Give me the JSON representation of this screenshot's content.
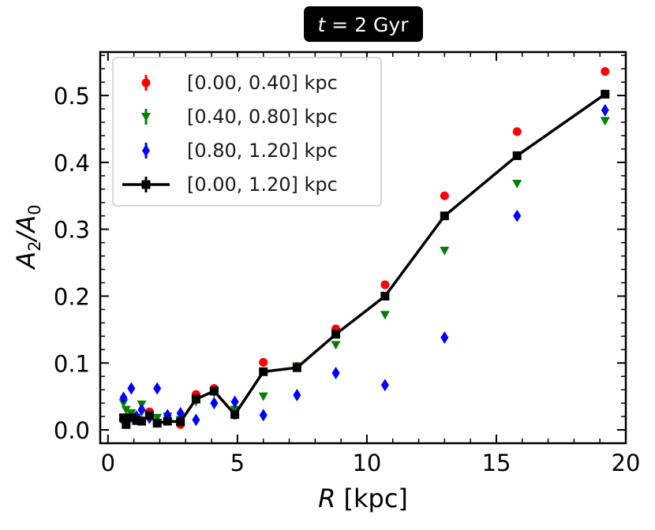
{
  "chart_data": {
    "type": "scatter",
    "title_prefix": "t",
    "title_suffix": " = 2 Gyr",
    "xlabel_var": "R",
    "xlabel_unit": " [kpc]",
    "ylabel_main": "A",
    "ylabel_sub1": "2",
    "ylabel_slash": "/A",
    "ylabel_sub2": "0",
    "xlim": [
      -0.3,
      20
    ],
    "ylim": [
      -0.02,
      0.565
    ],
    "xticks": [
      0,
      5,
      10,
      15,
      20
    ],
    "xtick_labels": [
      "0",
      "5",
      "10",
      "15",
      "20"
    ],
    "yticks": [
      0.0,
      0.1,
      0.2,
      0.3,
      0.4,
      0.5
    ],
    "ytick_labels": [
      "0.0",
      "0.1",
      "0.2",
      "0.3",
      "0.4",
      "0.5"
    ],
    "legend_position": "top-left",
    "series": [
      {
        "name": "[0.00, 0.40] kpc",
        "marker": "circle",
        "color": "#ff0000",
        "x": [
          0.6,
          0.7,
          0.9,
          1.1,
          1.3,
          1.6,
          1.9,
          2.3,
          2.8,
          3.4,
          4.1,
          4.9,
          6.0,
          7.3,
          8.8,
          10.7,
          13.0,
          15.8,
          19.2
        ],
        "y": [
          0.015,
          0.012,
          0.022,
          0.018,
          0.014,
          0.027,
          0.01,
          0.015,
          0.008,
          0.053,
          0.062,
          0.022,
          0.101,
          0.095,
          0.151,
          0.217,
          0.35,
          0.446,
          0.536
        ]
      },
      {
        "name": "[0.40, 0.80] kpc",
        "marker": "triangle-down",
        "color": "#008000",
        "x": [
          0.6,
          0.7,
          0.9,
          1.1,
          1.3,
          1.6,
          1.9,
          2.3,
          2.8,
          3.4,
          4.1,
          4.9,
          6.0,
          7.3,
          8.8,
          10.7,
          13.0,
          15.8,
          19.2
        ],
        "y": [
          0.04,
          0.03,
          0.025,
          0.018,
          0.038,
          0.022,
          0.018,
          0.02,
          0.015,
          0.042,
          0.055,
          0.03,
          0.05,
          0.095,
          0.127,
          0.172,
          0.268,
          0.368,
          0.462
        ]
      },
      {
        "name": "[0.80, 1.20] kpc",
        "marker": "thin-diamond",
        "color": "#0000ff",
        "x": [
          0.6,
          0.7,
          0.9,
          1.1,
          1.3,
          1.6,
          1.9,
          2.3,
          2.8,
          3.4,
          4.1,
          4.9,
          6.0,
          7.3,
          8.8,
          10.7,
          13.0,
          15.8,
          19.2
        ],
        "y": [
          0.048,
          0.012,
          0.062,
          0.02,
          0.03,
          0.018,
          0.062,
          0.022,
          0.025,
          0.015,
          0.04,
          0.042,
          0.022,
          0.052,
          0.085,
          0.067,
          0.138,
          0.32,
          0.478
        ]
      },
      {
        "name": "[0.00, 1.20] kpc",
        "marker": "square-line",
        "color": "#000000",
        "x": [
          0.6,
          0.7,
          0.9,
          1.1,
          1.3,
          1.6,
          1.9,
          2.3,
          2.8,
          3.4,
          4.1,
          4.9,
          6.0,
          7.3,
          8.8,
          10.7,
          13.0,
          15.8,
          19.2
        ],
        "y": [
          0.018,
          0.008,
          0.018,
          0.014,
          0.013,
          0.022,
          0.01,
          0.013,
          0.012,
          0.046,
          0.058,
          0.023,
          0.087,
          0.093,
          0.143,
          0.2,
          0.32,
          0.41,
          0.502
        ]
      }
    ]
  }
}
